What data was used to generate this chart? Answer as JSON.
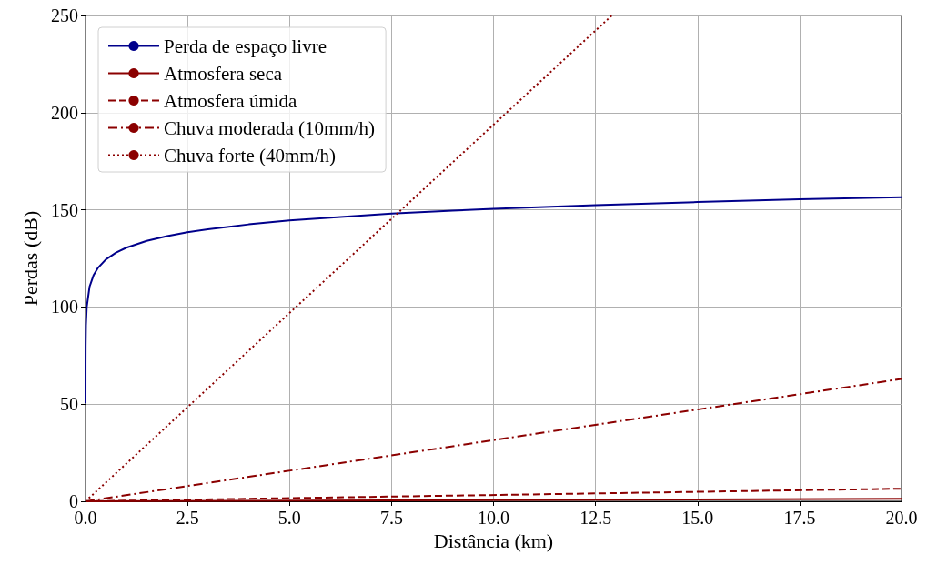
{
  "chart_data": {
    "type": "line",
    "xlabel": "Distância (km)",
    "ylabel": "Perdas (dB)",
    "xlim": [
      0,
      20
    ],
    "ylim": [
      0,
      250
    ],
    "xticks": [
      {
        "value": 0,
        "label": "0.0"
      },
      {
        "value": 2.5,
        "label": "2.5"
      },
      {
        "value": 5,
        "label": "5.0"
      },
      {
        "value": 7.5,
        "label": "7.5"
      },
      {
        "value": 10,
        "label": "10.0"
      },
      {
        "value": 12.5,
        "label": "12.5"
      },
      {
        "value": 15,
        "label": "15.0"
      },
      {
        "value": 17.5,
        "label": "17.5"
      },
      {
        "value": 20,
        "label": "20.0"
      }
    ],
    "yticks": [
      0,
      50,
      100,
      150,
      200,
      250
    ],
    "grid": true,
    "legend": "top left",
    "marker": "none",
    "series": [
      {
        "name": "Perda de espaço livre",
        "color": "#00008b",
        "line_style": "solid",
        "x": [
          0.0001,
          0.001,
          0.003,
          0.01,
          0.03,
          0.1,
          0.2,
          0.3,
          0.5,
          0.75,
          1,
          1.5,
          2,
          2.5,
          3,
          4,
          5,
          6,
          7.5,
          9,
          10,
          12.5,
          15,
          17.5,
          20
        ],
        "values": [
          50.5,
          70.5,
          80,
          90.5,
          100,
          110.5,
          116.5,
          120,
          124.5,
          128,
          130.5,
          134,
          136.5,
          138.5,
          140,
          142.5,
          144.5,
          146,
          148,
          149.6,
          150.5,
          152.4,
          154,
          155.4,
          156.5
        ]
      },
      {
        "name": "Atmosfera seca",
        "color": "#8b0000",
        "line_style": "solid",
        "x": [
          0,
          20
        ],
        "values": [
          0,
          1.3
        ]
      },
      {
        "name": "Atmosfera úmida",
        "color": "#8b0000",
        "line_style": "dashed",
        "x": [
          0,
          20
        ],
        "values": [
          0,
          6.5
        ]
      },
      {
        "name": "Chuva moderada (10mm/h)",
        "color": "#8b0000",
        "line_style": "dashdot",
        "x": [
          0,
          20
        ],
        "values": [
          0,
          63
        ]
      },
      {
        "name": "Chuva forte (40mm/h)",
        "color": "#8b0000",
        "line_style": "dotted",
        "x": [
          0,
          12.9
        ],
        "values": [
          0,
          250
        ]
      }
    ]
  }
}
